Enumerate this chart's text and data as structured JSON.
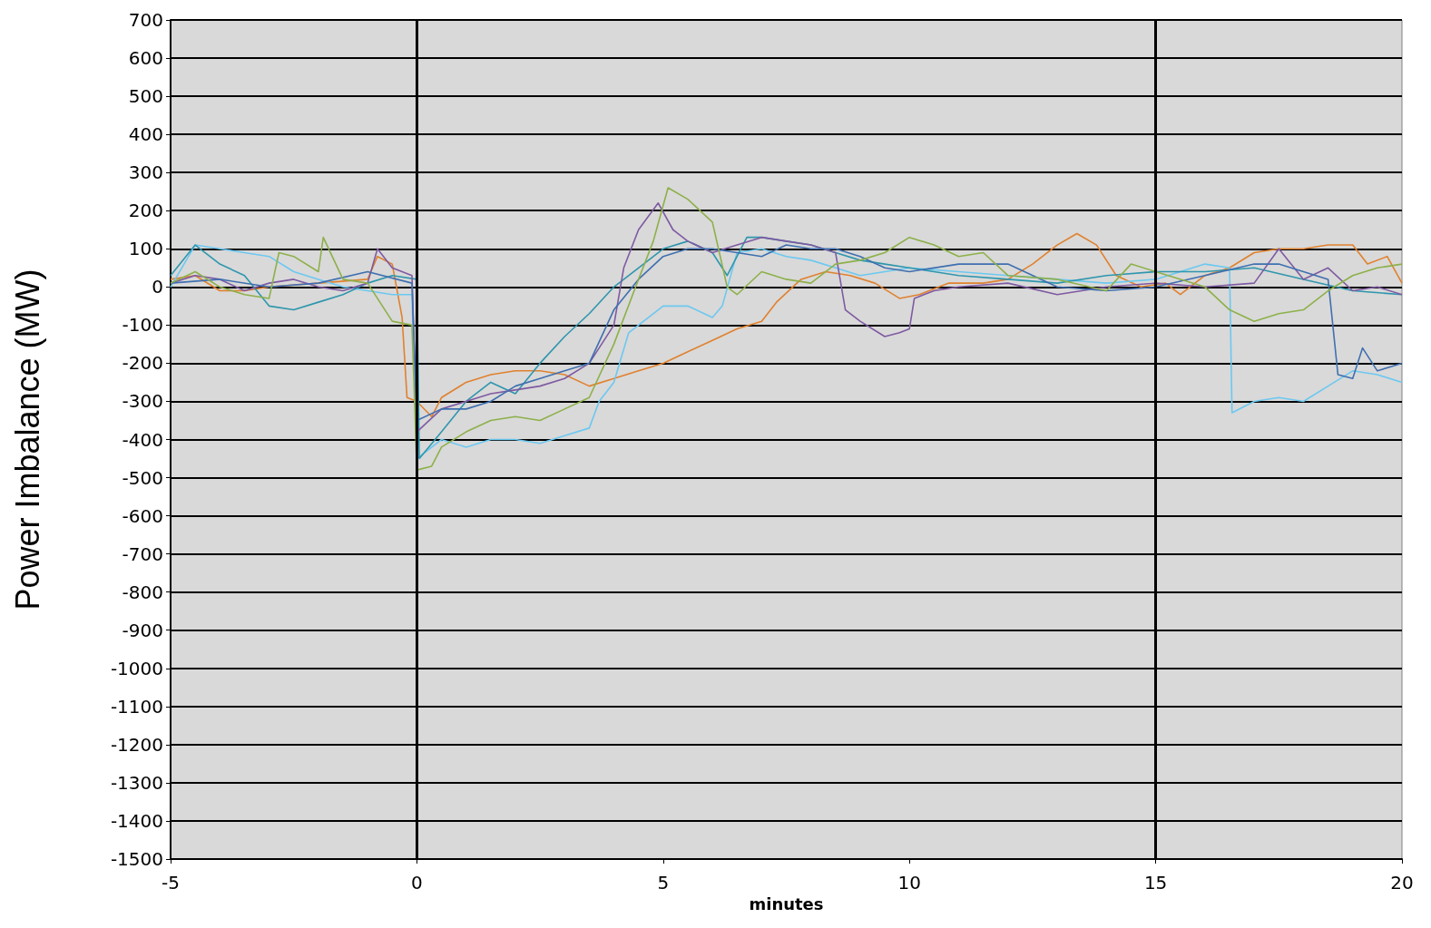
{
  "chart_data": {
    "type": "line",
    "xlabel": "minutes",
    "ylabel": "Power Imbalance (MW)",
    "xlim": [
      -5,
      20
    ],
    "xticks": [
      -5,
      0,
      5,
      10,
      15,
      20
    ],
    "ylim": [
      -1500,
      700
    ],
    "yticks": [
      -1500,
      -1400,
      -1300,
      -1200,
      -1100,
      -1000,
      -900,
      -800,
      -700,
      -600,
      -500,
      -400,
      -300,
      -200,
      -100,
      0,
      100,
      200,
      300,
      400,
      500,
      600,
      700
    ],
    "grid": "y",
    "marker": "none",
    "line_style": "solid",
    "ref_lines": [
      {
        "axis": "x",
        "value": 0,
        "color": "#000000"
      },
      {
        "axis": "x",
        "value": 15,
        "color": "#000000"
      }
    ],
    "series": [
      {
        "color": "#e0812e",
        "x": [
          -5,
          -4.5,
          -4,
          -3.5,
          -3,
          -2,
          -1,
          -0.8,
          -0.5,
          -0.3,
          -0.2,
          0,
          0.3,
          0.5,
          1,
          1.5,
          2,
          2.5,
          3,
          3.5,
          4,
          4.5,
          5,
          5.5,
          6,
          6.5,
          7,
          7.3,
          7.8,
          8.3,
          8.8,
          9.3,
          9.8,
          10.2,
          10.8,
          11.5,
          12,
          12.5,
          13,
          13.4,
          13.8,
          14.2,
          14.7,
          15.2,
          15.5,
          16,
          16.5,
          17,
          17.5,
          18,
          18.5,
          19,
          19.3,
          19.7,
          20
        ],
        "values": [
          20,
          30,
          -10,
          -10,
          0,
          10,
          20,
          80,
          60,
          -80,
          -290,
          -300,
          -340,
          -290,
          -250,
          -230,
          -220,
          -220,
          -230,
          -260,
          -240,
          -220,
          -200,
          -170,
          -140,
          -110,
          -90,
          -40,
          20,
          40,
          30,
          10,
          -30,
          -20,
          10,
          10,
          20,
          60,
          110,
          140,
          110,
          30,
          0,
          10,
          -20,
          30,
          50,
          90,
          100,
          100,
          110,
          110,
          60,
          80,
          10
        ]
      },
      {
        "color": "#6cc8f0",
        "x": [
          -5,
          -4.5,
          -4,
          -3.5,
          -3,
          -2.5,
          -2,
          -1.5,
          -1,
          -0.5,
          -0.1,
          0,
          0.5,
          1,
          1.5,
          2,
          2.5,
          3,
          3.5,
          3.7,
          4,
          4.3,
          5,
          5.5,
          6,
          6.2,
          6.5,
          7,
          7.5,
          8,
          8.5,
          9,
          9.5,
          10,
          11,
          12,
          13,
          14,
          15,
          16,
          16.5,
          16.55,
          17,
          17.5,
          18,
          18.5,
          19,
          19.5,
          20
        ],
        "values": [
          0,
          110,
          100,
          90,
          80,
          40,
          20,
          0,
          -10,
          -20,
          -20,
          -450,
          -400,
          -420,
          -400,
          -400,
          -410,
          -390,
          -370,
          -300,
          -250,
          -120,
          -50,
          -50,
          -80,
          -50,
          90,
          100,
          80,
          70,
          50,
          30,
          40,
          50,
          40,
          30,
          20,
          10,
          20,
          60,
          50,
          -330,
          -300,
          -290,
          -300,
          -260,
          -220,
          -230,
          -250
        ]
      },
      {
        "color": "#2e96ad",
        "x": [
          -5,
          -4.5,
          -4,
          -3.5,
          -3,
          -2.5,
          -2,
          -1.5,
          -1,
          -0.5,
          0,
          0.05,
          0.5,
          1,
          1.5,
          2,
          2.5,
          3,
          3.5,
          4,
          4.5,
          5,
          5.5,
          6,
          6.3,
          6.7,
          7,
          7.5,
          8,
          8.5,
          9,
          9.5,
          10,
          10.5,
          11,
          12,
          13,
          14,
          15,
          16,
          17,
          18,
          19,
          20
        ],
        "values": [
          30,
          110,
          60,
          30,
          -50,
          -60,
          -40,
          -20,
          10,
          30,
          20,
          -450,
          -380,
          -300,
          -250,
          -280,
          -200,
          -130,
          -70,
          0,
          50,
          100,
          120,
          90,
          30,
          130,
          130,
          120,
          110,
          90,
          70,
          60,
          50,
          40,
          30,
          20,
          10,
          30,
          40,
          40,
          50,
          20,
          -10,
          -20
        ]
      },
      {
        "color": "#7f5aa2",
        "x": [
          -5,
          -4.5,
          -4,
          -3.5,
          -3,
          -2.5,
          -2,
          -1.5,
          -1,
          -0.8,
          -0.5,
          -0.1,
          0,
          0.5,
          1,
          1.5,
          2,
          2.5,
          3,
          3.5,
          4,
          4.2,
          4.5,
          4.9,
          5.2,
          5.5,
          6,
          6.5,
          7,
          7.5,
          8,
          8.5,
          8.7,
          9,
          9.5,
          9.8,
          10,
          10.1,
          10.5,
          11,
          12,
          13,
          14,
          15,
          16,
          17,
          17.5,
          18,
          18.5,
          19,
          19.5,
          20
        ],
        "values": [
          10,
          30,
          20,
          -10,
          10,
          20,
          0,
          -10,
          10,
          100,
          50,
          30,
          -380,
          -320,
          -300,
          -280,
          -270,
          -260,
          -240,
          -200,
          -100,
          50,
          150,
          220,
          150,
          120,
          90,
          110,
          130,
          120,
          110,
          90,
          -60,
          -90,
          -130,
          -120,
          -110,
          -30,
          -10,
          0,
          10,
          -20,
          0,
          10,
          0,
          10,
          100,
          20,
          50,
          -10,
          0,
          -20
        ]
      },
      {
        "color": "#3f6fb0",
        "x": [
          -5,
          -4,
          -3,
          -2,
          -1,
          -0.1,
          0,
          0.5,
          1,
          1.5,
          2,
          2.5,
          3,
          3.5,
          4,
          4.5,
          5,
          5.5,
          6,
          6.5,
          7,
          7.5,
          8,
          8.5,
          9,
          9.5,
          10,
          11,
          12,
          13,
          14,
          15,
          16,
          17,
          17.5,
          18,
          18.5,
          18.7,
          19,
          19.2,
          19.5,
          20
        ],
        "values": [
          10,
          20,
          0,
          10,
          40,
          10,
          -350,
          -320,
          -320,
          -300,
          -260,
          -240,
          -220,
          -200,
          -60,
          20,
          80,
          100,
          100,
          90,
          80,
          110,
          100,
          100,
          80,
          50,
          40,
          60,
          60,
          0,
          -10,
          0,
          30,
          60,
          60,
          40,
          20,
          -230,
          -240,
          -160,
          -220,
          -200
        ]
      },
      {
        "color": "#8db04a",
        "x": [
          -5,
          -4.5,
          -4,
          -3.5,
          -3,
          -2.8,
          -2.5,
          -2,
          -1.9,
          -1.5,
          -1,
          -0.5,
          -0.1,
          0,
          0.3,
          0.5,
          1,
          1.5,
          2,
          2.5,
          3,
          3.5,
          4,
          4.5,
          4.8,
          5.1,
          5.5,
          6,
          6.3,
          6.5,
          7,
          7.5,
          8,
          8.5,
          9,
          9.5,
          10,
          10.5,
          11,
          11.5,
          12,
          13,
          14,
          14.5,
          15,
          16,
          16.5,
          17,
          17.5,
          18,
          18.5,
          19,
          19.5,
          20
        ],
        "values": [
          10,
          40,
          0,
          -20,
          -30,
          90,
          80,
          40,
          130,
          20,
          10,
          -90,
          -100,
          -480,
          -470,
          -420,
          -380,
          -350,
          -340,
          -350,
          -320,
          -290,
          -150,
          20,
          120,
          260,
          230,
          170,
          0,
          -20,
          40,
          20,
          10,
          60,
          70,
          90,
          130,
          110,
          80,
          90,
          30,
          20,
          -10,
          60,
          40,
          0,
          -60,
          -90,
          -70,
          -60,
          -10,
          30,
          50,
          60
        ]
      }
    ]
  }
}
